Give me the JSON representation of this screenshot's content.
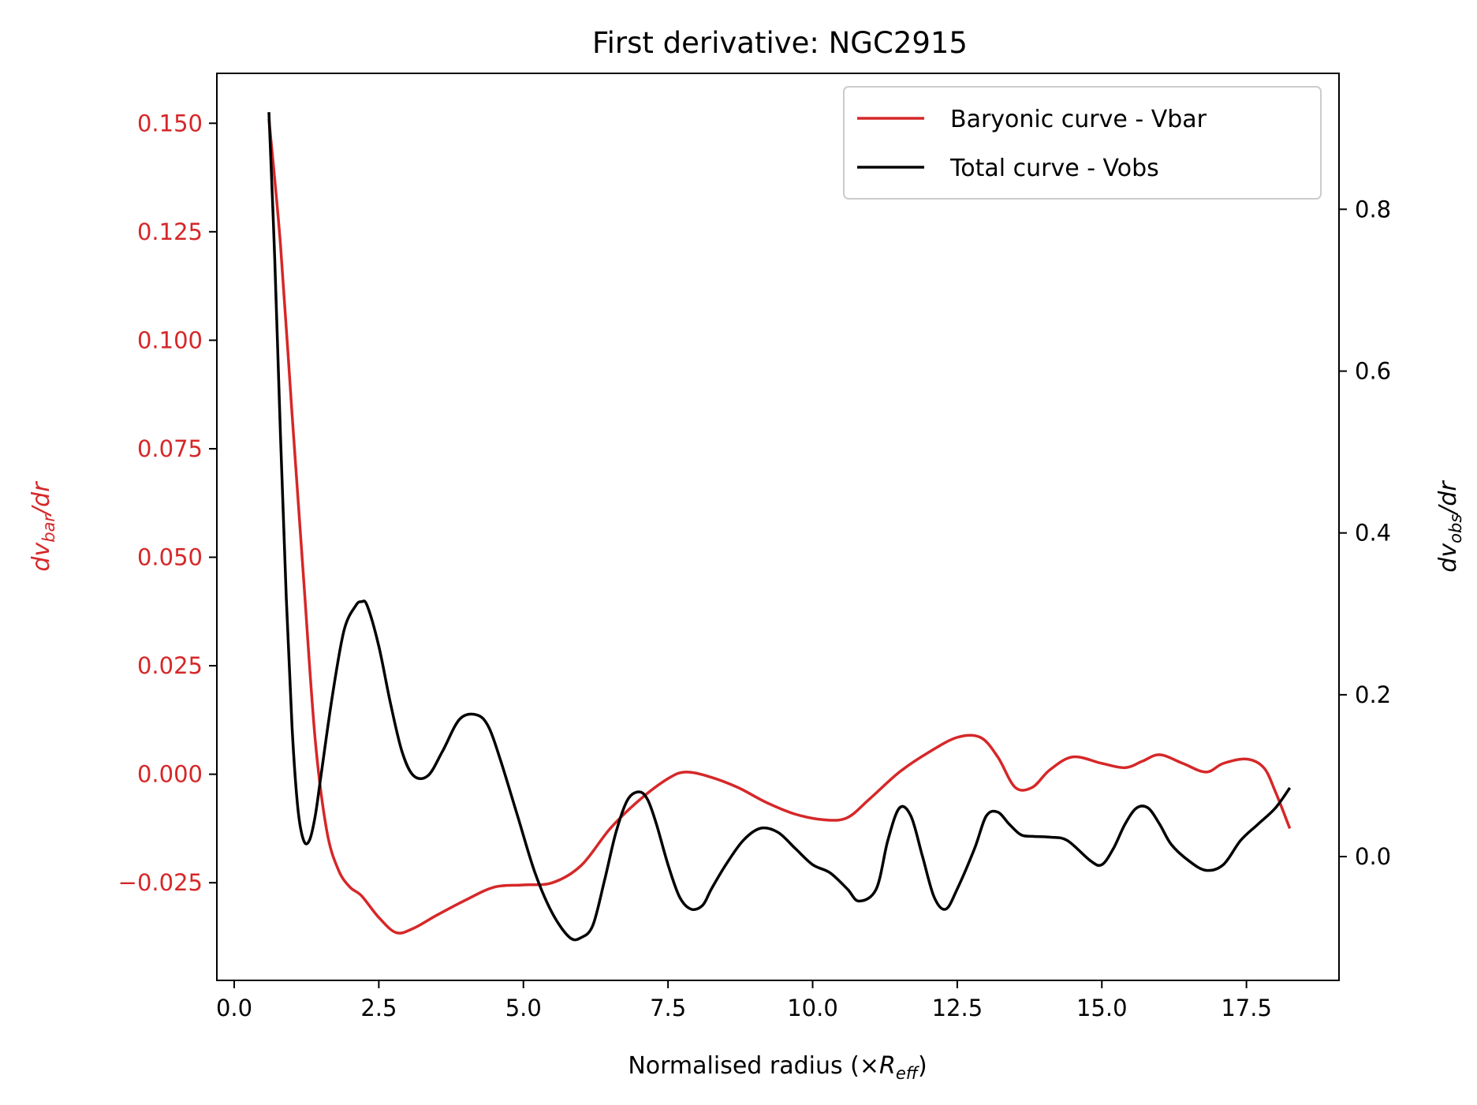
{
  "chart_data": {
    "type": "line",
    "title": "First derivative: NGC2915",
    "xlabel": {
      "text": "Normalised radius (×",
      "var": "R",
      "sub": "eff",
      "close": ")"
    },
    "ylabel_left": {
      "d": "dv",
      "sub": "bar",
      "tail": "/dr"
    },
    "ylabel_right": {
      "d": "dv",
      "sub": "obs",
      "tail": "/dr"
    },
    "xlim": [
      -0.3,
      19.1
    ],
    "ylim_left": [
      -0.0475,
      0.1615
    ],
    "ylim_right": [
      -0.153,
      0.968
    ],
    "x_ticks": [
      0.0,
      2.5,
      5.0,
      7.5,
      10.0,
      12.5,
      15.0,
      17.5
    ],
    "x_tick_labels": [
      "0.0",
      "2.5",
      "5.0",
      "7.5",
      "10.0",
      "12.5",
      "15.0",
      "17.5"
    ],
    "y_left_ticks": [
      -0.025,
      0.0,
      0.025,
      0.05,
      0.075,
      0.1,
      0.125,
      0.15
    ],
    "y_left_tick_labels": [
      "−0.025",
      "0.000",
      "0.025",
      "0.050",
      "0.075",
      "0.100",
      "0.125",
      "0.150"
    ],
    "y_right_ticks": [
      0.0,
      0.2,
      0.4,
      0.6,
      0.8
    ],
    "y_right_tick_labels": [
      "0.0",
      "0.2",
      "0.4",
      "0.6",
      "0.8"
    ],
    "legend_position": "upper right",
    "grid": false,
    "colors": {
      "bar": "#d62728",
      "obs": "#000000"
    },
    "series": [
      {
        "name": "Baryonic curve - Vbar",
        "axis": "left",
        "color": "#d62728",
        "x": [
          0.6,
          0.8,
          1.0,
          1.2,
          1.4,
          1.6,
          1.8,
          2.0,
          2.2,
          2.5,
          2.8,
          3.1,
          3.5,
          4.0,
          4.5,
          5.0,
          5.5,
          6.0,
          6.5,
          7.0,
          7.5,
          7.8,
          8.2,
          8.7,
          9.2,
          9.7,
          10.2,
          10.6,
          11.0,
          11.5,
          12.0,
          12.5,
          12.9,
          13.2,
          13.5,
          13.8,
          14.1,
          14.5,
          15.0,
          15.4,
          15.7,
          16.0,
          16.4,
          16.8,
          17.1,
          17.5,
          17.8,
          18.0,
          18.25
        ],
        "y": [
          0.151,
          0.122,
          0.083,
          0.045,
          0.008,
          -0.013,
          -0.022,
          -0.026,
          -0.028,
          -0.033,
          -0.0365,
          -0.0355,
          -0.0325,
          -0.029,
          -0.026,
          -0.0255,
          -0.025,
          -0.021,
          -0.0125,
          -0.006,
          -0.001,
          0.0005,
          -0.0005,
          -0.003,
          -0.0065,
          -0.0092,
          -0.0105,
          -0.01,
          -0.0055,
          0.0005,
          0.005,
          0.0085,
          0.0085,
          0.004,
          -0.003,
          -0.003,
          0.001,
          0.004,
          0.0025,
          0.0015,
          0.003,
          0.0045,
          0.0025,
          0.0005,
          0.0025,
          0.0035,
          0.0015,
          -0.004,
          -0.0125
        ]
      },
      {
        "name": "Total curve - Vobs",
        "axis": "right",
        "color": "#000000",
        "x": [
          0.6,
          0.7,
          0.8,
          0.9,
          1.0,
          1.1,
          1.2,
          1.3,
          1.4,
          1.5,
          1.7,
          1.9,
          2.1,
          2.2,
          2.3,
          2.5,
          2.7,
          2.9,
          3.1,
          3.35,
          3.6,
          3.9,
          4.2,
          4.4,
          4.6,
          4.9,
          5.2,
          5.5,
          5.8,
          6.0,
          6.2,
          6.4,
          6.6,
          6.8,
          7.0,
          7.15,
          7.3,
          7.5,
          7.7,
          7.9,
          8.1,
          8.25,
          8.5,
          8.8,
          9.1,
          9.4,
          9.7,
          10.0,
          10.3,
          10.6,
          10.8,
          11.1,
          11.3,
          11.5,
          11.7,
          11.9,
          12.1,
          12.3,
          12.5,
          12.8,
          13.0,
          13.2,
          13.4,
          13.6,
          13.8,
          14.1,
          14.4,
          14.8,
          15.0,
          15.2,
          15.4,
          15.6,
          15.8,
          16.0,
          16.2,
          16.5,
          16.8,
          17.1,
          17.4,
          17.7,
          18.0,
          18.25
        ],
        "y": [
          0.92,
          0.74,
          0.52,
          0.32,
          0.16,
          0.06,
          0.02,
          0.02,
          0.05,
          0.1,
          0.2,
          0.28,
          0.31,
          0.315,
          0.31,
          0.26,
          0.19,
          0.13,
          0.1,
          0.1,
          0.13,
          0.17,
          0.175,
          0.16,
          0.12,
          0.05,
          -0.02,
          -0.07,
          -0.1,
          -0.1,
          -0.085,
          -0.03,
          0.03,
          0.07,
          0.08,
          0.07,
          0.04,
          -0.01,
          -0.05,
          -0.065,
          -0.06,
          -0.04,
          -0.01,
          0.02,
          0.035,
          0.03,
          0.01,
          -0.01,
          -0.02,
          -0.04,
          -0.055,
          -0.04,
          0.02,
          0.06,
          0.05,
          0.0,
          -0.05,
          -0.065,
          -0.04,
          0.01,
          0.05,
          0.055,
          0.04,
          0.027,
          0.025,
          0.024,
          0.02,
          -0.005,
          -0.01,
          0.01,
          0.04,
          0.06,
          0.06,
          0.04,
          0.015,
          -0.005,
          -0.017,
          -0.01,
          0.02,
          0.04,
          0.06,
          0.085
        ]
      }
    ]
  }
}
